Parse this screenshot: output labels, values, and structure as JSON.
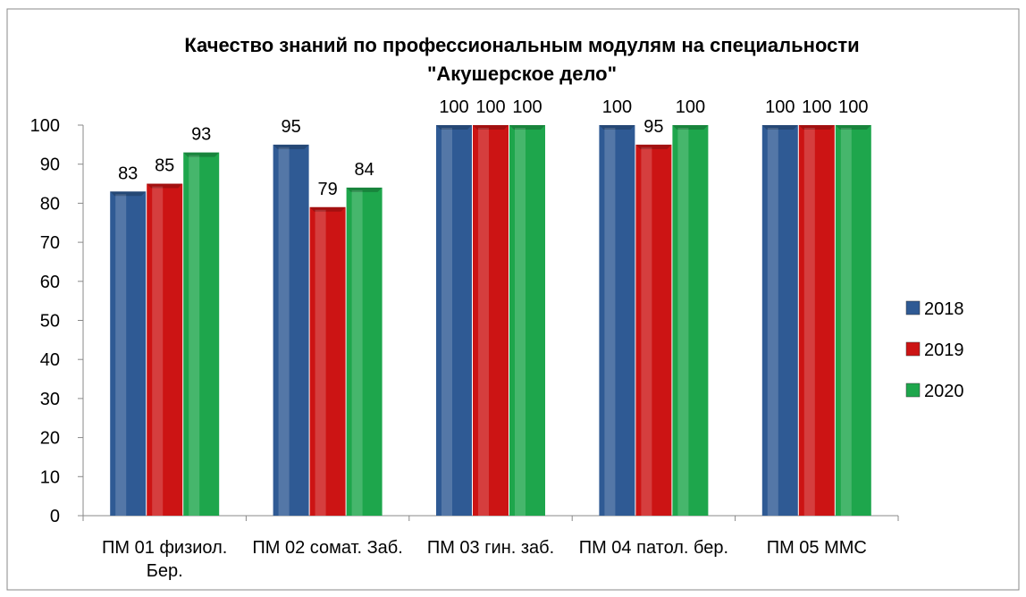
{
  "chart_data": {
    "type": "bar",
    "title": [
      "Качество знаний по профессиональным модулям на специальности",
      "\"Акушерское дело\""
    ],
    "categories": [
      "ПМ 01 физиол. Бер.",
      "ПМ 02 сомат. Заб.",
      "ПМ 03 гин. заб.",
      "ПМ 04  патол. бер.",
      "ПМ 05 ММС"
    ],
    "series": [
      {
        "name": "2018",
        "color": "#2f5a94",
        "values": [
          83,
          95,
          100,
          100,
          100
        ]
      },
      {
        "name": "2019",
        "color": "#cc1414",
        "values": [
          85,
          79,
          100,
          95,
          100
        ]
      },
      {
        "name": "2020",
        "color": "#1ea64c",
        "values": [
          93,
          84,
          100,
          100,
          100
        ]
      }
    ],
    "ylim": [
      0,
      100
    ],
    "yticks": [
      0,
      10,
      20,
      30,
      40,
      50,
      60,
      70,
      80,
      90,
      100
    ],
    "legend": "right"
  }
}
